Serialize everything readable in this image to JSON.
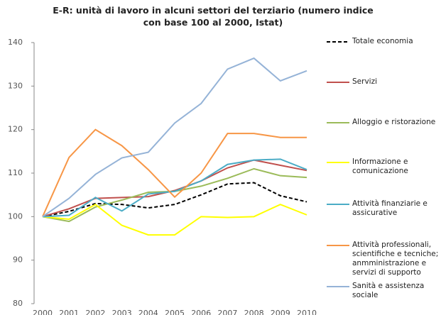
{
  "chart_data": {
    "type": "line",
    "title": "E-R: unità di lavoro in alcuni settori del terziario (numero indice con base 100 al 2000, Istat)",
    "categories": [
      "2000",
      "2001",
      "2002",
      "2003",
      "2004",
      "2005",
      "2006",
      "2007",
      "2008",
      "2009",
      "2010"
    ],
    "ylim": [
      80,
      140
    ],
    "yticks": [
      80,
      90,
      100,
      110,
      120,
      130,
      140
    ],
    "grid": false,
    "series": [
      {
        "name": "Totale economia",
        "color": "#000000",
        "dashed": true,
        "values": [
          100,
          101.2,
          103,
          102.8,
          102,
          102.8,
          105,
          107.5,
          107.8,
          104.8,
          103.4
        ]
      },
      {
        "name": "Servizi",
        "color": "#c0504d",
        "values": [
          100,
          101.8,
          104.2,
          104.4,
          104.6,
          106,
          108.2,
          111.2,
          113,
          111.8,
          110.6
        ]
      },
      {
        "name": "Alloggio e ristorazione",
        "color": "#9bbb59",
        "values": [
          100,
          98.9,
          102.2,
          103.8,
          105.6,
          105.8,
          107,
          108.8,
          111,
          109.4,
          109
        ]
      },
      {
        "name": "Informazione e comunicazione",
        "color": "#ffff00",
        "values": [
          100,
          99.4,
          102.8,
          98,
          95.8,
          95.8,
          100,
          99.8,
          100,
          102.8,
          100.4
        ]
      },
      {
        "name": "Attività finanziarie e assicurative",
        "color": "#4bacc6",
        "values": [
          100,
          100.3,
          104.4,
          101.3,
          105.2,
          105.8,
          108.2,
          112,
          113,
          113.2,
          110.8
        ]
      },
      {
        "name": "Attività professionali, scientifiche e tecniche; anmministrazione e servizi di supporto",
        "color": "#f79646",
        "values": [
          100,
          113.6,
          120,
          116.3,
          110.8,
          104.5,
          110,
          119.1,
          119.1,
          118.2,
          118.2
        ]
      },
      {
        "name": "Sanità e assistenza sociale",
        "color": "#95b3d7",
        "values": [
          100,
          104.2,
          109.7,
          113.5,
          114.8,
          121.5,
          126,
          133.9,
          136.4,
          131.2,
          133.5
        ]
      }
    ]
  }
}
